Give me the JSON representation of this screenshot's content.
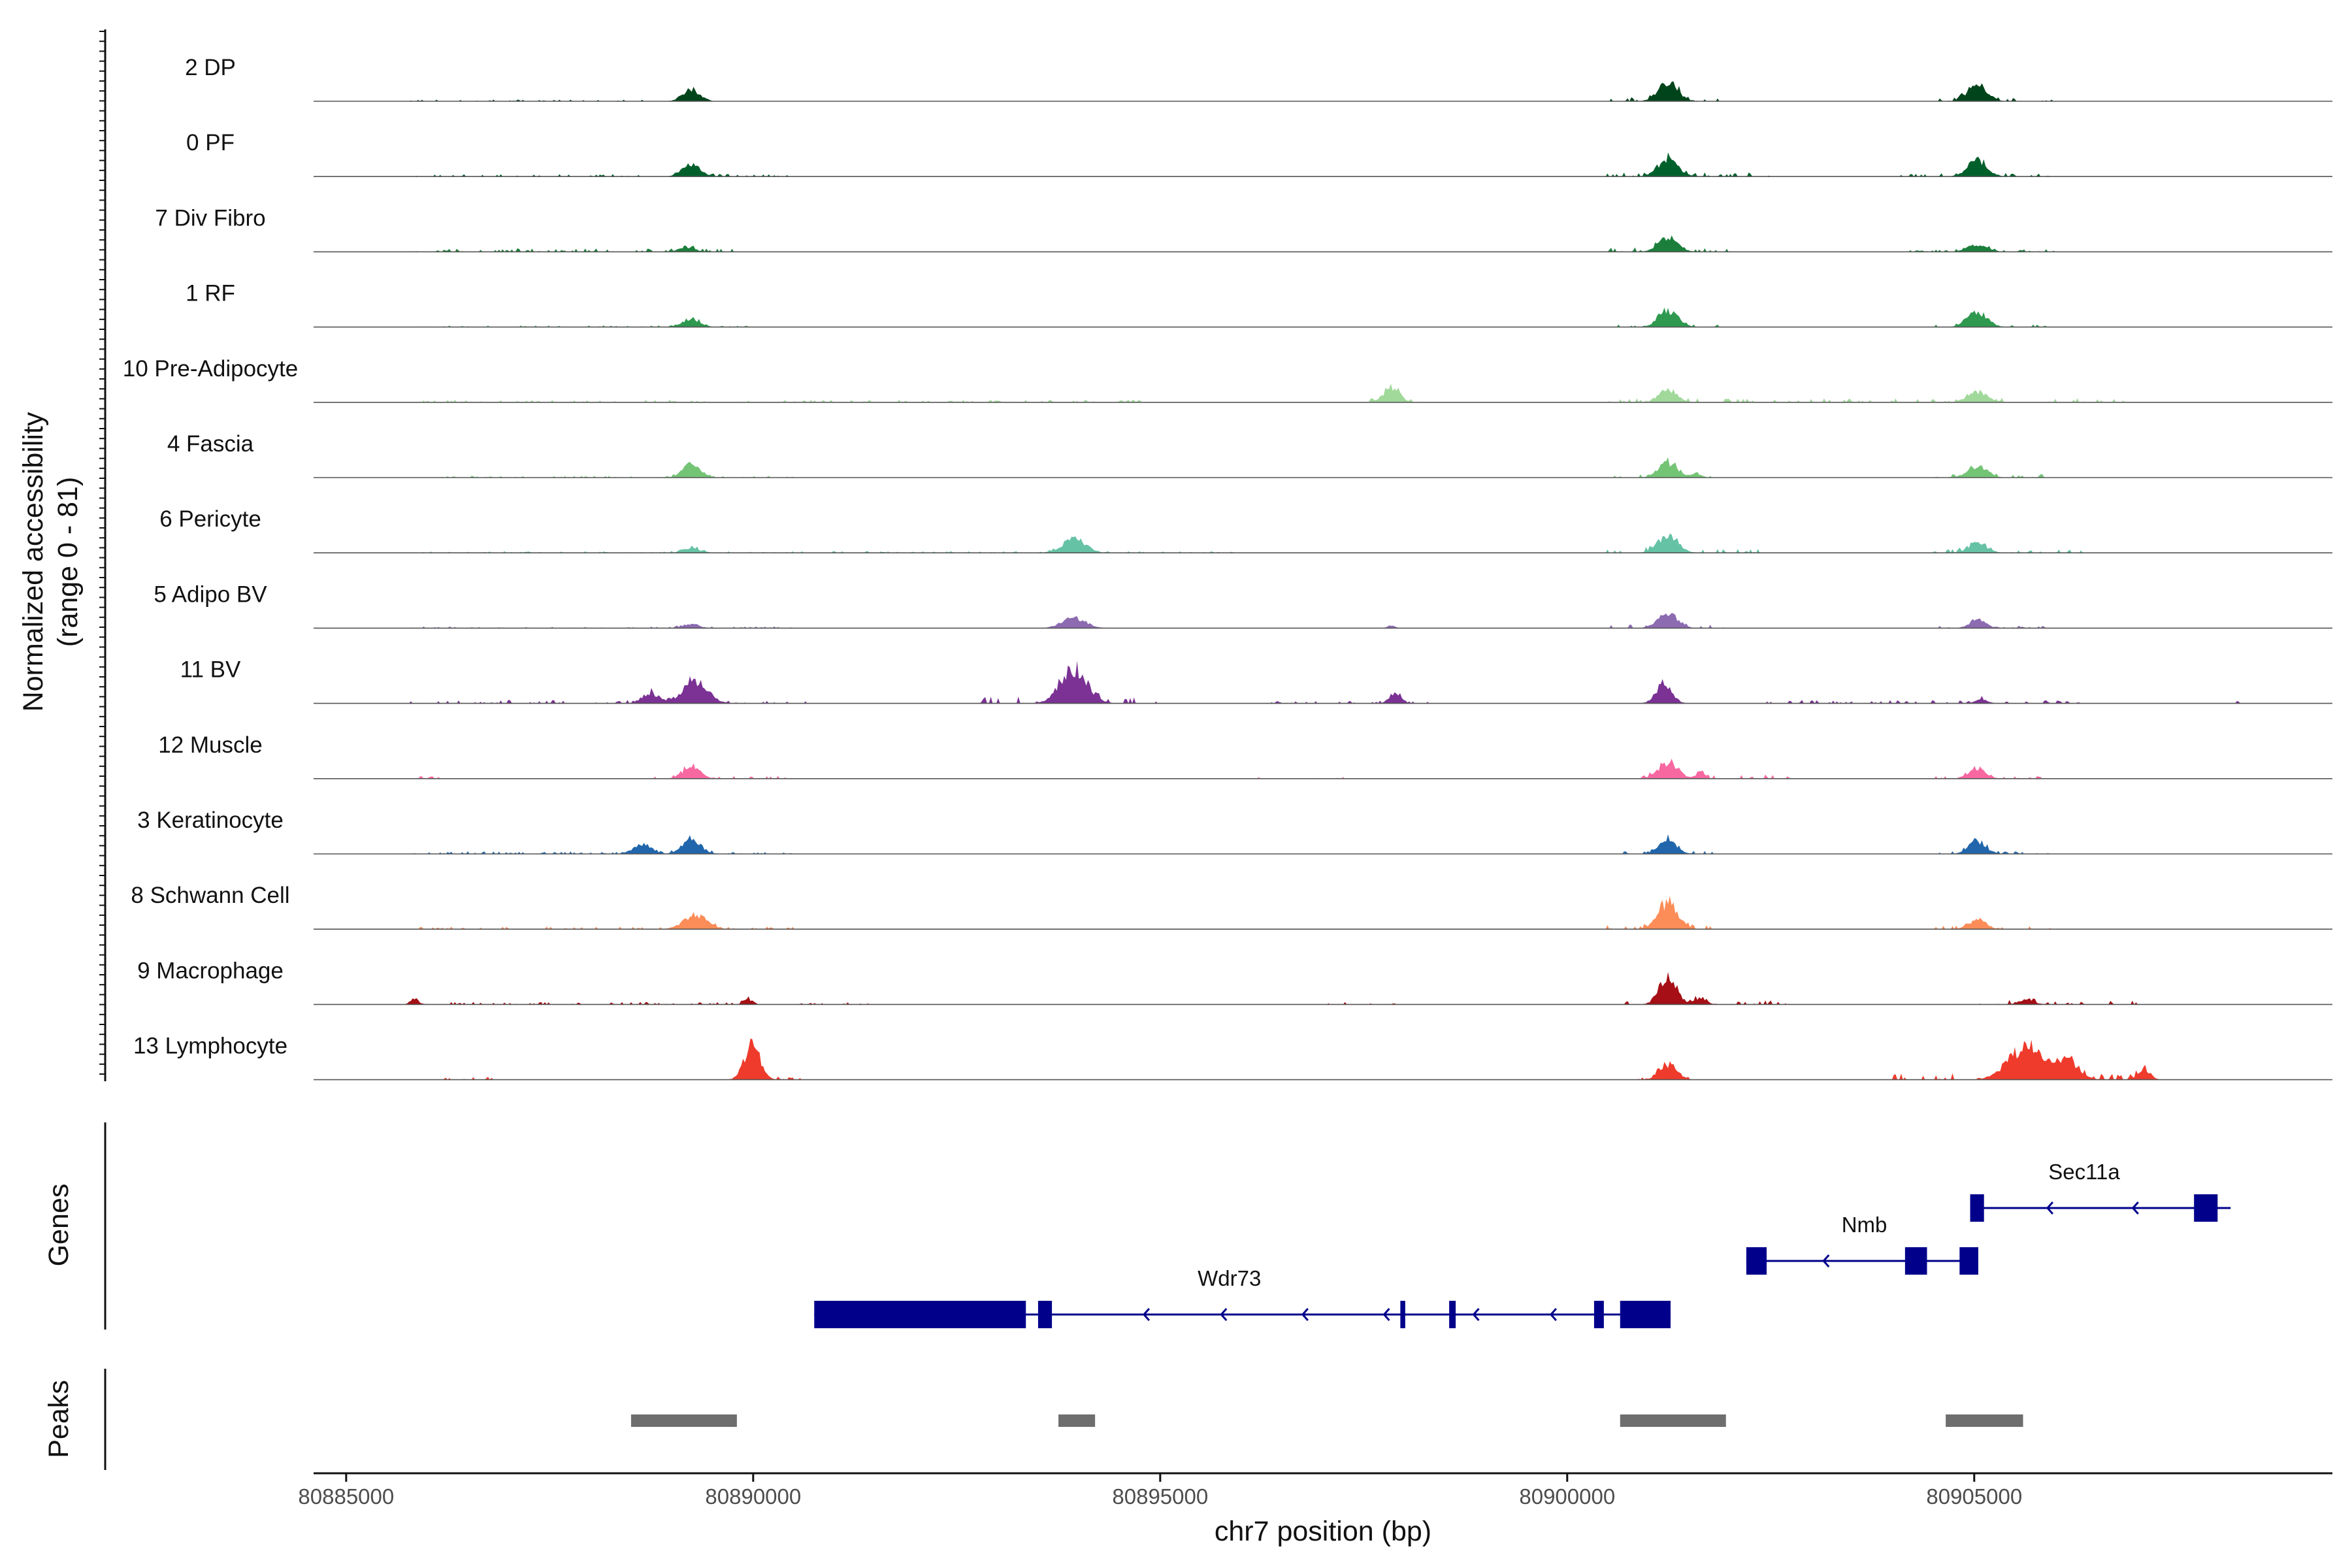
{
  "chart_data": {
    "type": "area",
    "title": "",
    "ylabel_line1": "Normalized accessibility",
    "ylabel_line2": "(range 0 - 81)",
    "xlabel": "chr7 position (bp)",
    "xlim": [
      80884600,
      80909400
    ],
    "ylim": [
      0,
      81
    ],
    "x_ticks": [
      80885000,
      80890000,
      80895000,
      80900000,
      80905000
    ],
    "x_tick_labels": [
      "80885000",
      "80890000",
      "80895000",
      "80900000",
      "80905000"
    ],
    "tracks": [
      {
        "name": "2 DP",
        "color": "#00441b",
        "peaks": [
          [
            80889250,
            14,
            220
          ],
          [
            80901250,
            22,
            250
          ],
          [
            80905050,
            19,
            250
          ]
        ],
        "noise": [
          [
            80885800,
            80889000,
            2
          ],
          [
            80900500,
            80902000,
            5
          ],
          [
            80904500,
            80906000,
            4
          ]
        ]
      },
      {
        "name": "0 PF",
        "color": "#00602b",
        "peaks": [
          [
            80889250,
            15,
            230
          ],
          [
            80901250,
            21,
            250
          ],
          [
            80905050,
            19,
            250
          ]
        ],
        "noise": [
          [
            80885800,
            80890500,
            3
          ],
          [
            80900500,
            80902500,
            5
          ],
          [
            80904000,
            80906000,
            4
          ]
        ]
      },
      {
        "name": "7 Div Fibro",
        "color": "#1b7f3b",
        "peaks": [
          [
            80889200,
            5,
            200
          ],
          [
            80901250,
            15,
            250
          ],
          [
            80905050,
            8,
            250
          ]
        ],
        "noise": [
          [
            80885800,
            80890000,
            4
          ],
          [
            80900500,
            80902000,
            5
          ],
          [
            80904200,
            80906000,
            3
          ]
        ]
      },
      {
        "name": "1 RF",
        "color": "#2e994f",
        "peaks": [
          [
            80889250,
            10,
            220
          ],
          [
            80901250,
            19,
            250
          ],
          [
            80905050,
            18,
            250
          ]
        ],
        "noise": [
          [
            80885800,
            80890000,
            2
          ],
          [
            80900500,
            80902000,
            4
          ],
          [
            80904500,
            80906000,
            3
          ]
        ]
      },
      {
        "name": "10 Pre-Adipocyte",
        "color": "#a1d99b",
        "peaks": [
          [
            80897850,
            15,
            220
          ],
          [
            80901250,
            15,
            220
          ],
          [
            80905050,
            12,
            250
          ]
        ],
        "noise": [
          [
            80885800,
            80895000,
            3
          ],
          [
            80897500,
            80898300,
            5
          ],
          [
            80900500,
            80907000,
            5
          ]
        ]
      },
      {
        "name": "4 Fascia",
        "color": "#74c476",
        "peaks": [
          [
            80889250,
            15,
            230
          ],
          [
            80901250,
            17,
            250
          ],
          [
            80901600,
            5,
            120
          ],
          [
            80905050,
            13,
            250
          ]
        ],
        "noise": [
          [
            80885800,
            80890500,
            2
          ],
          [
            80900500,
            80902000,
            4
          ],
          [
            80904500,
            80906000,
            4
          ]
        ]
      },
      {
        "name": "6 Pericyte",
        "color": "#66c2a5",
        "peaks": [
          [
            80889250,
            6,
            220
          ],
          [
            80893950,
            16,
            300
          ],
          [
            80901250,
            20,
            260
          ],
          [
            80905050,
            11,
            250
          ]
        ],
        "noise": [
          [
            80885800,
            80896000,
            2
          ],
          [
            80900500,
            80902500,
            5
          ],
          [
            80904500,
            80906500,
            4
          ]
        ]
      },
      {
        "name": "5 Adipo BV",
        "color": "#8c6bb1",
        "peaks": [
          [
            80889250,
            5,
            200
          ],
          [
            80893950,
            12,
            300
          ],
          [
            80897850,
            3,
            100
          ],
          [
            80901250,
            17,
            250
          ],
          [
            80905050,
            10,
            200
          ]
        ],
        "noise": [
          [
            80885800,
            80890500,
            2
          ],
          [
            80900500,
            80902000,
            4
          ],
          [
            80904500,
            80906000,
            3
          ]
        ]
      },
      {
        "name": "11 BV",
        "color": "#7b3294",
        "peaks": [
          [
            80888750,
            12,
            220
          ],
          [
            80889300,
            25,
            320
          ],
          [
            80893950,
            38,
            350
          ],
          [
            80897900,
            11,
            150
          ],
          [
            80901200,
            24,
            200
          ],
          [
            80905100,
            5,
            150
          ]
        ],
        "noise": [
          [
            80885800,
            80890700,
            4
          ],
          [
            80892700,
            80895000,
            8
          ],
          [
            80896300,
            80898500,
            3
          ],
          [
            80902400,
            80906500,
            4
          ],
          [
            80908100,
            80908300,
            3
          ]
        ]
      },
      {
        "name": "12 Muscle",
        "color": "#f768a1",
        "peaks": [
          [
            80889250,
            14,
            220
          ],
          [
            80901250,
            18,
            250
          ],
          [
            80901650,
            7,
            120
          ],
          [
            80905050,
            12,
            220
          ]
        ],
        "noise": [
          [
            80885800,
            80886200,
            3
          ],
          [
            80888800,
            80890500,
            3
          ],
          [
            80896000,
            80897500,
            2
          ],
          [
            80900700,
            80902800,
            5
          ],
          [
            80904500,
            80906000,
            3
          ]
        ]
      },
      {
        "name": "3 Keratinocyte",
        "color": "#2166ac",
        "peaks": [
          [
            80888650,
            12,
            220
          ],
          [
            80889250,
            18,
            230
          ],
          [
            80901250,
            17,
            220
          ],
          [
            80905050,
            15,
            220
          ]
        ],
        "noise": [
          [
            80885800,
            80890500,
            3
          ],
          [
            80900700,
            80902000,
            4
          ],
          [
            80904500,
            80906000,
            3
          ]
        ]
      },
      {
        "name": "8 Schwann Cell",
        "color": "#fc8d59",
        "peaks": [
          [
            80889300,
            16,
            300
          ],
          [
            80901250,
            30,
            250
          ],
          [
            80905050,
            11,
            220
          ]
        ],
        "noise": [
          [
            80885800,
            80890500,
            3
          ],
          [
            80900500,
            80902000,
            5
          ],
          [
            80904500,
            80906000,
            4
          ]
        ]
      },
      {
        "name": "9 Macrophage",
        "color": "#a50f15",
        "peaks": [
          [
            80885850,
            7,
            100
          ],
          [
            80889950,
            6,
            120
          ],
          [
            80901250,
            33,
            220
          ],
          [
            80901650,
            8,
            150
          ],
          [
            80905650,
            5,
            200
          ]
        ],
        "noise": [
          [
            80885700,
            80891500,
            3
          ],
          [
            80897000,
            80898000,
            3
          ],
          [
            80900700,
            80903000,
            5
          ],
          [
            80904700,
            80907000,
            5
          ]
        ]
      },
      {
        "name": "13 Lymphocyte",
        "color": "#ef3b2c",
        "peaks": [
          [
            80890000,
            40,
            200
          ],
          [
            80901250,
            18,
            220
          ],
          [
            80905650,
            38,
            450
          ],
          [
            80906150,
            20,
            300
          ],
          [
            80907100,
            12,
            150
          ]
        ],
        "noise": [
          [
            80886200,
            80886800,
            4
          ],
          [
            80889900,
            80890600,
            4
          ],
          [
            80900700,
            80901500,
            5
          ],
          [
            80904000,
            80907200,
            8
          ]
        ]
      }
    ],
    "gene_track_label": "Genes",
    "genes": [
      {
        "name": "Sec11a",
        "start": 80904950,
        "end": 80908150,
        "row": 0,
        "label_x": 80906350,
        "strand": "-",
        "exons": [
          [
            80904950,
            80905120
          ],
          [
            80907700,
            80907990
          ]
        ],
        "arrows": [
          80905900,
          80906950
        ]
      },
      {
        "name": "Nmb",
        "start": 80902200,
        "end": 80905050,
        "row": 1,
        "label_x": 80903650,
        "strand": "-",
        "exons": [
          [
            80902200,
            80902450
          ],
          [
            80904150,
            80904420
          ],
          [
            80904820,
            80905050
          ]
        ],
        "arrows": [
          80903150
        ]
      },
      {
        "name": "Wdr73",
        "start": 80890750,
        "end": 80901270,
        "row": 2,
        "label_x": 80895850,
        "strand": "-",
        "exons": [
          [
            80890750,
            80893350
          ],
          [
            80893500,
            80893670
          ],
          [
            80897950,
            80898010
          ],
          [
            80898550,
            80898630
          ],
          [
            80900330,
            80900450
          ],
          [
            80900650,
            80901270
          ]
        ],
        "arrows": [
          80894800,
          80895750,
          80896750,
          80897750,
          80898850,
          80899800
        ]
      }
    ],
    "peak_track_label": "Peaks",
    "peak_regions": [
      [
        80888500,
        80889800
      ],
      [
        80893750,
        80894200
      ],
      [
        80900650,
        80901950
      ],
      [
        80904650,
        80905600
      ]
    ]
  }
}
